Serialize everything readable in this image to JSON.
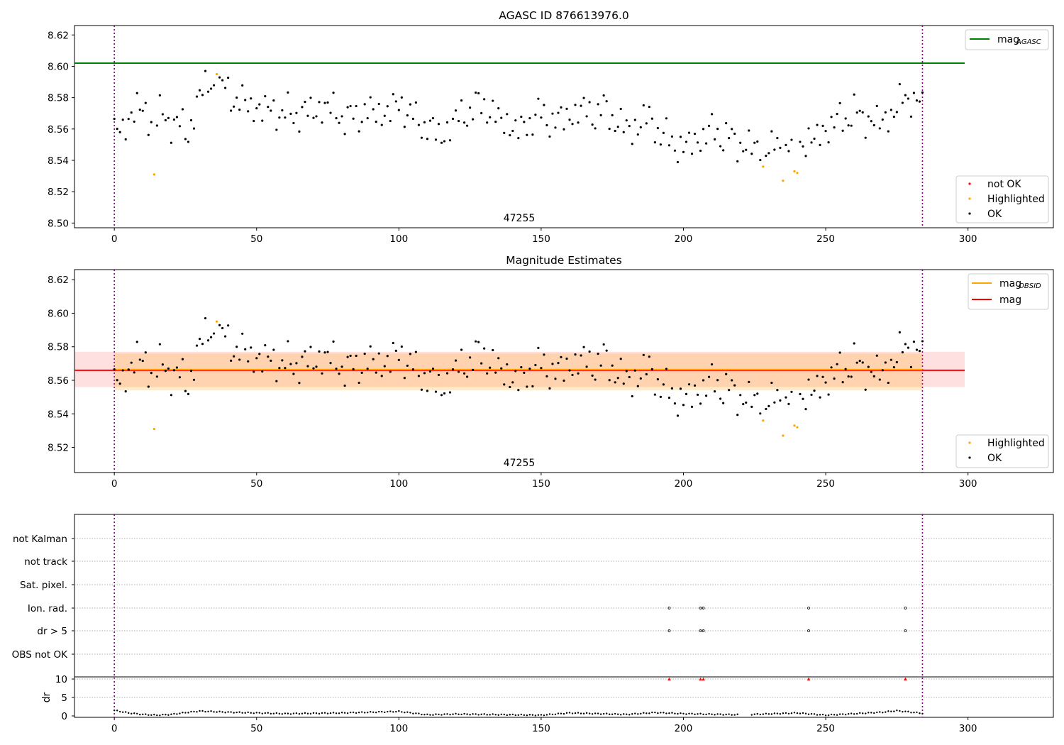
{
  "chart_data": [
    {
      "type": "scatter",
      "title": "AGASC ID 876613976.0",
      "xlim": [
        -14,
        330
      ],
      "ylim": [
        8.497,
        8.626
      ],
      "xticks": [
        0,
        50,
        100,
        150,
        200,
        250,
        300
      ],
      "yticks": [
        8.5,
        8.52,
        8.54,
        8.56,
        8.58,
        8.6,
        8.62
      ],
      "vlines": [
        0,
        284
      ],
      "annotation": {
        "text": "47255",
        "x": 142
      },
      "mag_agasc": {
        "label": "mag",
        "sub": "AGASC",
        "value": 8.602,
        "color": "#008000"
      },
      "legend_points": [
        {
          "label": "not OK",
          "color": "#ff0000"
        },
        {
          "label": "Highlighted",
          "color": "#ffa500"
        },
        {
          "label": "OK",
          "color": "#000000"
        }
      ],
      "highlighted": {
        "x": [
          14,
          36,
          228,
          235,
          239,
          240
        ],
        "y": [
          8.531,
          8.595,
          8.536,
          8.527,
          8.533,
          8.532
        ]
      },
      "ok_series_ref": "ok_series"
    },
    {
      "type": "scatter",
      "title": "Magnitude Estimates",
      "xlim": [
        -14,
        330
      ],
      "ylim": [
        8.505,
        8.626
      ],
      "xticks": [
        0,
        50,
        100,
        150,
        200,
        250,
        300
      ],
      "yticks": [
        8.52,
        8.54,
        8.56,
        8.58,
        8.6,
        8.62
      ],
      "vlines": [
        0,
        284
      ],
      "annotation": {
        "text": "47255",
        "x": 142
      },
      "mag_obsid": {
        "label": "mag",
        "sub": "OBSID",
        "value": 8.566,
        "band": [
          8.554,
          8.576
        ],
        "color": "#ffa500"
      },
      "mag": {
        "label": "mag",
        "value": 8.566,
        "band": [
          8.556,
          8.577
        ],
        "color": "#ff0000"
      },
      "legend_points": [
        {
          "label": "Highlighted",
          "color": "#ffa500"
        },
        {
          "label": "OK",
          "color": "#000000"
        }
      ],
      "highlighted": {
        "x": [
          14,
          36,
          228,
          235,
          239,
          240
        ],
        "y": [
          8.531,
          8.595,
          8.536,
          8.527,
          8.533,
          8.532
        ]
      },
      "ok_series_ref": "ok_series"
    },
    {
      "type": "scatter",
      "title": "",
      "xlim": [
        -14,
        330
      ],
      "xticks": [
        0,
        50,
        100,
        150,
        200,
        250,
        300
      ],
      "vlines": [
        0,
        284
      ],
      "flag_categories": [
        "not Kalman",
        "not track",
        "Sat. pixel.",
        "Ion. rad.",
        "dr > 5",
        "OBS not OK"
      ],
      "flags": {
        "Ion. rad.": [
          195,
          206,
          207,
          244,
          278
        ],
        "dr > 5": [
          195,
          206,
          207,
          244,
          278
        ]
      },
      "dr_ylabel": "dr",
      "dr_ylim": [
        -0.5,
        10.5
      ],
      "dr_yticks": [
        0,
        5,
        10
      ],
      "dr_outliers": {
        "x": [
          195,
          206,
          207,
          244,
          278
        ],
        "y": [
          10,
          10,
          10,
          10,
          10
        ],
        "color": "#ff0000"
      }
    }
  ],
  "ok_series": {
    "anchors_x": [
      0,
      3,
      8,
      12,
      16,
      20,
      24,
      26,
      30,
      36,
      42,
      48,
      55,
      62,
      68,
      75,
      82,
      88,
      95,
      101,
      106,
      110,
      115,
      120,
      125,
      130,
      135,
      140,
      143,
      148,
      152,
      158,
      163,
      168,
      172,
      178,
      182,
      186,
      190,
      195,
      200,
      205,
      210,
      215,
      220,
      225,
      230,
      234,
      238,
      242,
      246,
      250,
      255,
      260,
      265,
      270,
      276,
      280,
      284
    ],
    "anchors_y": [
      8.556,
      8.56,
      8.575,
      8.566,
      8.568,
      8.565,
      8.562,
      8.555,
      8.584,
      8.589,
      8.58,
      8.574,
      8.572,
      8.569,
      8.571,
      8.574,
      8.566,
      8.571,
      8.57,
      8.576,
      8.565,
      8.562,
      8.555,
      8.566,
      8.572,
      8.576,
      8.566,
      8.562,
      8.558,
      8.57,
      8.566,
      8.566,
      8.572,
      8.57,
      8.572,
      8.563,
      8.558,
      8.568,
      8.562,
      8.552,
      8.548,
      8.553,
      8.559,
      8.555,
      8.55,
      8.548,
      8.549,
      8.547,
      8.55,
      8.552,
      8.553,
      8.56,
      8.566,
      8.57,
      8.566,
      8.564,
      8.576,
      8.582,
      8.572
    ],
    "dr_anchors_x": [
      0,
      5,
      10,
      15,
      20,
      25,
      30,
      40,
      60,
      80,
      100,
      110,
      120,
      150,
      160,
      180,
      190,
      200,
      220,
      240,
      250,
      260,
      270,
      275,
      284
    ],
    "dr_anchors_y": [
      1.5,
      0.8,
      0.4,
      0.2,
      0.4,
      0.9,
      1.3,
      1.0,
      0.6,
      0.8,
      1.2,
      0.3,
      0.5,
      0.2,
      0.8,
      0.4,
      0.9,
      0.6,
      0.3,
      0.8,
      0.2,
      0.6,
      1.0,
      1.4,
      0.7
    ],
    "gap_x": [
      220,
      221,
      222,
      223
    ]
  }
}
